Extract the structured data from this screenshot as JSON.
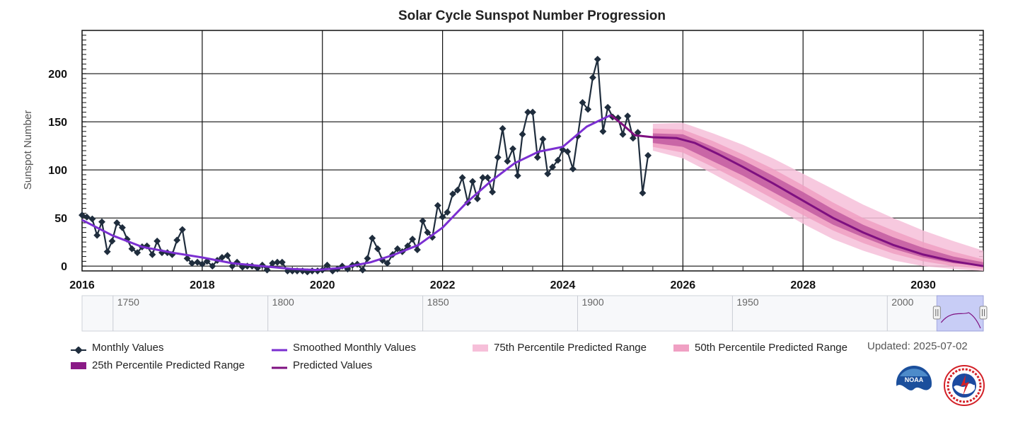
{
  "chart_data": {
    "type": "line",
    "title": "Solar Cycle Sunspot Number Progression",
    "ylabel": "Sunspot Number",
    "xlim": [
      2016,
      2031.0
    ],
    "ylim": [
      -5,
      245
    ],
    "x_ticks": [
      "2016",
      "2018",
      "2020",
      "2022",
      "2024",
      "2026",
      "2028",
      "2030"
    ],
    "y_ticks": [
      "0",
      "50",
      "100",
      "150",
      "200"
    ],
    "grid": true,
    "series": [
      {
        "name": "Monthly Values",
        "color": "#1f2d3d",
        "x": [
          2016.0,
          2016.08,
          2016.17,
          2016.25,
          2016.33,
          2016.42,
          2016.5,
          2016.58,
          2016.67,
          2016.75,
          2016.83,
          2016.92,
          2017.0,
          2017.08,
          2017.17,
          2017.25,
          2017.33,
          2017.42,
          2017.5,
          2017.58,
          2017.67,
          2017.75,
          2017.83,
          2017.92,
          2018.0,
          2018.08,
          2018.17,
          2018.25,
          2018.33,
          2018.42,
          2018.5,
          2018.58,
          2018.67,
          2018.75,
          2018.83,
          2018.92,
          2019.0,
          2019.08,
          2019.17,
          2019.25,
          2019.33,
          2019.42,
          2019.5,
          2019.58,
          2019.67,
          2019.75,
          2019.83,
          2019.92,
          2020.0,
          2020.08,
          2020.17,
          2020.25,
          2020.33,
          2020.42,
          2020.5,
          2020.58,
          2020.67,
          2020.75,
          2020.83,
          2020.92,
          2021.0,
          2021.08,
          2021.17,
          2021.25,
          2021.33,
          2021.42,
          2021.5,
          2021.58,
          2021.67,
          2021.75,
          2021.83,
          2021.92,
          2022.0,
          2022.08,
          2022.17,
          2022.25,
          2022.33,
          2022.42,
          2022.5,
          2022.58,
          2022.67,
          2022.75,
          2022.83,
          2022.92,
          2023.0,
          2023.08,
          2023.17,
          2023.25,
          2023.33,
          2023.42,
          2023.5,
          2023.58,
          2023.67,
          2023.75,
          2023.83,
          2023.92,
          2024.0,
          2024.08,
          2024.17,
          2024.25,
          2024.33,
          2024.42,
          2024.5,
          2024.58,
          2024.67,
          2024.75,
          2024.83,
          2024.92,
          2025.0,
          2025.08,
          2025.17,
          2025.25,
          2025.33,
          2025.42
        ],
        "y": [
          53,
          51,
          49,
          32,
          46,
          15,
          26,
          45,
          40,
          28,
          18,
          14,
          20,
          21,
          12,
          26,
          14,
          14,
          12,
          27,
          38,
          8,
          3,
          4,
          2,
          5,
          0,
          6,
          9,
          11,
          0,
          4,
          -1,
          0,
          0,
          -2,
          1,
          -4,
          3,
          4,
          4,
          -5,
          -5,
          -5,
          -5,
          -6,
          -5,
          -5,
          -4,
          1,
          -5,
          -3,
          0,
          -3,
          1,
          2,
          -4,
          8,
          29,
          18,
          6,
          3,
          12,
          18,
          15,
          21,
          28,
          17,
          47,
          35,
          30,
          63,
          51,
          56,
          75,
          79,
          92,
          66,
          88,
          70,
          92,
          92,
          77,
          113,
          143,
          109,
          122,
          94,
          137,
          160,
          160,
          113,
          132,
          96,
          103,
          110,
          121,
          119,
          101,
          135,
          170,
          163,
          196,
          215,
          140,
          165,
          155,
          154,
          137,
          156,
          133,
          139,
          76,
          115
        ]
      },
      {
        "name": "Smoothed Monthly Values",
        "color": "#7b2fd1",
        "x": [
          2016.0,
          2016.5,
          2017.0,
          2017.5,
          2018.0,
          2018.5,
          2019.0,
          2019.5,
          2019.9,
          2020.3,
          2020.8,
          2021.2,
          2021.6,
          2022.0,
          2022.4,
          2022.8,
          2023.2,
          2023.6,
          2024.0,
          2024.4,
          2024.8
        ],
        "y": [
          48,
          32,
          20,
          14,
          9,
          3,
          0,
          -3,
          -4,
          -2,
          4,
          12,
          22,
          40,
          66,
          88,
          107,
          119,
          124,
          145,
          157
        ]
      },
      {
        "name": "Predicted Values",
        "color": "#7e1080",
        "x": [
          2024.8,
          2025.0,
          2025.2,
          2025.5,
          2025.9,
          2026.2,
          2026.6,
          2027.0,
          2027.5,
          2028.0,
          2028.5,
          2029.0,
          2029.5,
          2030.0,
          2030.5,
          2031.0
        ],
        "y": [
          157,
          147,
          136,
          134,
          133,
          128,
          116,
          103,
          86,
          68,
          50,
          35,
          22,
          12,
          5,
          0
        ]
      }
    ],
    "bands": [
      {
        "name": "75th Percentile Predicted Range",
        "color": "#f6bfd9",
        "x": [
          2025.5,
          2026.0,
          2026.5,
          2027.0,
          2027.5,
          2028.0,
          2028.5,
          2029.0,
          2029.5,
          2030.0,
          2030.5,
          2031.0
        ],
        "low": [
          120,
          112,
          96,
          79,
          62,
          44,
          28,
          16,
          6,
          0,
          -3,
          -5
        ],
        "high": [
          148,
          149,
          138,
          126,
          112,
          96,
          80,
          64,
          50,
          37,
          26,
          16
        ]
      },
      {
        "name": "50th Percentile Predicted Range",
        "color": "#f0a0c3",
        "x": [
          2025.5,
          2026.0,
          2026.5,
          2027.0,
          2027.5,
          2028.0,
          2028.5,
          2029.0,
          2029.5,
          2030.0,
          2030.5,
          2031.0
        ],
        "low": [
          124,
          118,
          103,
          87,
          70,
          53,
          37,
          24,
          13,
          5,
          0,
          -3
        ],
        "high": [
          143,
          142,
          130,
          116,
          101,
          84,
          66,
          50,
          37,
          25,
          15,
          7
        ]
      },
      {
        "name": "25th Percentile Predicted Range",
        "color": "#c25aa0",
        "x": [
          2025.5,
          2026.0,
          2026.5,
          2027.0,
          2027.5,
          2028.0,
          2028.5,
          2029.0,
          2029.5,
          2030.0,
          2030.5,
          2031.0
        ],
        "low": [
          128,
          124,
          109,
          94,
          77,
          60,
          43,
          30,
          18,
          9,
          3,
          0
        ],
        "high": [
          138,
          137,
          124,
          110,
          94,
          77,
          59,
          43,
          30,
          19,
          10,
          4
        ]
      }
    ]
  },
  "navigator": {
    "labels": [
      "1750",
      "1800",
      "1850",
      "1900",
      "1950",
      "2000"
    ]
  },
  "legend": {
    "items": [
      {
        "label": "Monthly Values"
      },
      {
        "label": "Smoothed Monthly Values"
      },
      {
        "label": "75th Percentile Predicted Range"
      },
      {
        "label": "50th Percentile Predicted Range"
      },
      {
        "label": "25th Percentile Predicted Range"
      },
      {
        "label": "Predicted Values"
      }
    ]
  },
  "updated": "Updated: 2025-07-02",
  "logos": {
    "noaa": "NOAA",
    "nws": "NATIONAL WEATHER SERVICE"
  }
}
